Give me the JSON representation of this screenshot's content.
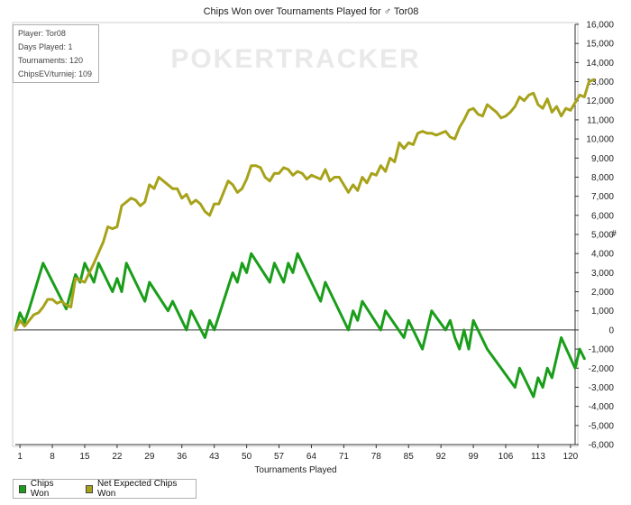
{
  "chart_data": {
    "type": "line",
    "title": "Chips Won over Tournaments Played for ♂ Tor08",
    "watermark": "POKERTRACKER",
    "xlabel": "Tournaments Played",
    "ylabel_right": "#",
    "xlim": [
      0,
      121
    ],
    "ylim": [
      -6000,
      16000
    ],
    "x_ticks": [
      1,
      8,
      15,
      22,
      29,
      36,
      43,
      50,
      57,
      64,
      71,
      78,
      85,
      92,
      99,
      106,
      113,
      120
    ],
    "y_ticks": [
      -6000,
      -5000,
      -4000,
      -3000,
      -2000,
      -1000,
      0,
      1000,
      2000,
      3000,
      4000,
      5000,
      6000,
      7000,
      8000,
      9000,
      10000,
      11000,
      12000,
      13000,
      14000,
      15000,
      16000
    ],
    "y_tick_labels": [
      "-6,000",
      "-5,000",
      "-4,000",
      "-3,000",
      "-2,000",
      "-1,000",
      "0",
      "1,000",
      "2,000",
      "3,000",
      "4,000",
      "5,000",
      "6,000",
      "7,000",
      "8,000",
      "9,000",
      "10,000",
      "11,000",
      "12,000",
      "13,000",
      "14,000",
      "15,000",
      "16,000"
    ],
    "grid": false,
    "zero_line": true,
    "series": [
      {
        "name": "Chips Won",
        "color": "#1a9e1a",
        "points": [
          [
            0,
            0
          ],
          [
            1,
            900
          ],
          [
            2,
            400
          ],
          [
            3,
            1100
          ],
          [
            6,
            3500
          ],
          [
            11,
            1100
          ],
          [
            13,
            2900
          ],
          [
            14,
            2500
          ],
          [
            15,
            3500
          ],
          [
            17,
            2500
          ],
          [
            18,
            3500
          ],
          [
            21,
            2000
          ],
          [
            22,
            2700
          ],
          [
            23,
            2000
          ],
          [
            24,
            3500
          ],
          [
            28,
            1500
          ],
          [
            29,
            2500
          ],
          [
            33,
            1000
          ],
          [
            34,
            1500
          ],
          [
            37,
            0
          ],
          [
            38,
            1000
          ],
          [
            41,
            -400
          ],
          [
            42,
            500
          ],
          [
            43,
            0
          ],
          [
            47,
            3000
          ],
          [
            48,
            2500
          ],
          [
            49,
            3500
          ],
          [
            50,
            3000
          ],
          [
            51,
            4000
          ],
          [
            55,
            2500
          ],
          [
            56,
            3500
          ],
          [
            58,
            2500
          ],
          [
            59,
            3500
          ],
          [
            60,
            3000
          ],
          [
            61,
            4000
          ],
          [
            66,
            1500
          ],
          [
            67,
            2500
          ],
          [
            72,
            0
          ],
          [
            73,
            1000
          ],
          [
            74,
            500
          ],
          [
            75,
            1500
          ],
          [
            79,
            0
          ],
          [
            80,
            1000
          ],
          [
            84,
            -400
          ],
          [
            85,
            500
          ],
          [
            88,
            -1000
          ],
          [
            90,
            1000
          ],
          [
            93,
            0
          ],
          [
            94,
            500
          ],
          [
            95,
            -400
          ],
          [
            96,
            -1000
          ],
          [
            97,
            0
          ],
          [
            98,
            -1000
          ],
          [
            99,
            500
          ],
          [
            102,
            -1000
          ],
          [
            108,
            -3000
          ],
          [
            109,
            -2000
          ],
          [
            112,
            -3500
          ],
          [
            113,
            -2500
          ],
          [
            114,
            -3000
          ],
          [
            115,
            -2000
          ],
          [
            116,
            -2500
          ],
          [
            118,
            -400
          ],
          [
            121,
            -2000
          ],
          [
            122,
            -1000
          ],
          [
            123,
            -1500
          ]
        ]
      },
      {
        "name": "Net Expected Chips Won",
        "color": "#a7a21a",
        "points": [
          [
            0,
            0
          ],
          [
            1,
            500
          ],
          [
            2,
            200
          ],
          [
            4,
            800
          ],
          [
            5,
            900
          ],
          [
            6,
            1200
          ],
          [
            7,
            1600
          ],
          [
            8,
            1600
          ],
          [
            9,
            1400
          ],
          [
            10,
            1500
          ],
          [
            11,
            1300
          ],
          [
            12,
            1200
          ],
          [
            13,
            2700
          ],
          [
            14,
            2600
          ],
          [
            15,
            2500
          ],
          [
            17,
            3500
          ],
          [
            19,
            4600
          ],
          [
            20,
            5400
          ],
          [
            21,
            5300
          ],
          [
            22,
            5400
          ],
          [
            23,
            6500
          ],
          [
            24,
            6700
          ],
          [
            25,
            6900
          ],
          [
            26,
            6800
          ],
          [
            27,
            6500
          ],
          [
            28,
            6700
          ],
          [
            29,
            7600
          ],
          [
            30,
            7400
          ],
          [
            31,
            8000
          ],
          [
            32,
            7800
          ],
          [
            33,
            7600
          ],
          [
            34,
            7400
          ],
          [
            35,
            7400
          ],
          [
            36,
            6900
          ],
          [
            37,
            7100
          ],
          [
            38,
            6600
          ],
          [
            39,
            6800
          ],
          [
            40,
            6600
          ],
          [
            41,
            6200
          ],
          [
            42,
            6000
          ],
          [
            43,
            6600
          ],
          [
            44,
            6600
          ],
          [
            45,
            7200
          ],
          [
            46,
            7800
          ],
          [
            47,
            7600
          ],
          [
            48,
            7200
          ],
          [
            49,
            7400
          ],
          [
            50,
            7900
          ],
          [
            51,
            8600
          ],
          [
            52,
            8600
          ],
          [
            53,
            8500
          ],
          [
            54,
            8000
          ],
          [
            55,
            7800
          ],
          [
            56,
            8200
          ],
          [
            57,
            8200
          ],
          [
            58,
            8500
          ],
          [
            59,
            8400
          ],
          [
            60,
            8100
          ],
          [
            61,
            8300
          ],
          [
            62,
            8200
          ],
          [
            63,
            7900
          ],
          [
            64,
            8100
          ],
          [
            65,
            8000
          ],
          [
            66,
            7900
          ],
          [
            67,
            8400
          ],
          [
            68,
            7800
          ],
          [
            69,
            8000
          ],
          [
            70,
            8000
          ],
          [
            71,
            7600
          ],
          [
            72,
            7200
          ],
          [
            73,
            7600
          ],
          [
            74,
            7300
          ],
          [
            75,
            8000
          ],
          [
            76,
            7700
          ],
          [
            77,
            8200
          ],
          [
            78,
            8100
          ],
          [
            79,
            8600
          ],
          [
            80,
            8300
          ],
          [
            81,
            9000
          ],
          [
            82,
            8800
          ],
          [
            83,
            9800
          ],
          [
            84,
            9500
          ],
          [
            85,
            9800
          ],
          [
            86,
            9700
          ],
          [
            87,
            10300
          ],
          [
            88,
            10400
          ],
          [
            89,
            10300
          ],
          [
            90,
            10300
          ],
          [
            91,
            10200
          ],
          [
            92,
            10300
          ],
          [
            93,
            10400
          ],
          [
            94,
            10100
          ],
          [
            95,
            10000
          ],
          [
            96,
            10600
          ],
          [
            97,
            11000
          ],
          [
            98,
            11500
          ],
          [
            99,
            11600
          ],
          [
            100,
            11300
          ],
          [
            101,
            11200
          ],
          [
            102,
            11800
          ],
          [
            103,
            11600
          ],
          [
            104,
            11400
          ],
          [
            105,
            11100
          ],
          [
            106,
            11200
          ],
          [
            107,
            11400
          ],
          [
            108,
            11700
          ],
          [
            109,
            12200
          ],
          [
            110,
            12000
          ],
          [
            111,
            12300
          ],
          [
            112,
            12400
          ],
          [
            113,
            11800
          ],
          [
            114,
            11600
          ],
          [
            115,
            12100
          ],
          [
            116,
            11400
          ],
          [
            117,
            11700
          ],
          [
            118,
            11200
          ],
          [
            119,
            11600
          ],
          [
            120,
            11500
          ],
          [
            121,
            11900
          ],
          [
            122,
            12300
          ],
          [
            123,
            12200
          ],
          [
            124,
            13000
          ],
          [
            125,
            13100
          ]
        ]
      }
    ]
  },
  "info": {
    "player": "Player: Tor08",
    "days": "Days Played: 1",
    "tournaments": "Tournaments: 120",
    "chipsev": "ChipsEV/turniej: 109"
  },
  "legend": {
    "chips_won": "Chips Won",
    "net_expected": "Net Expected Chips Won"
  }
}
